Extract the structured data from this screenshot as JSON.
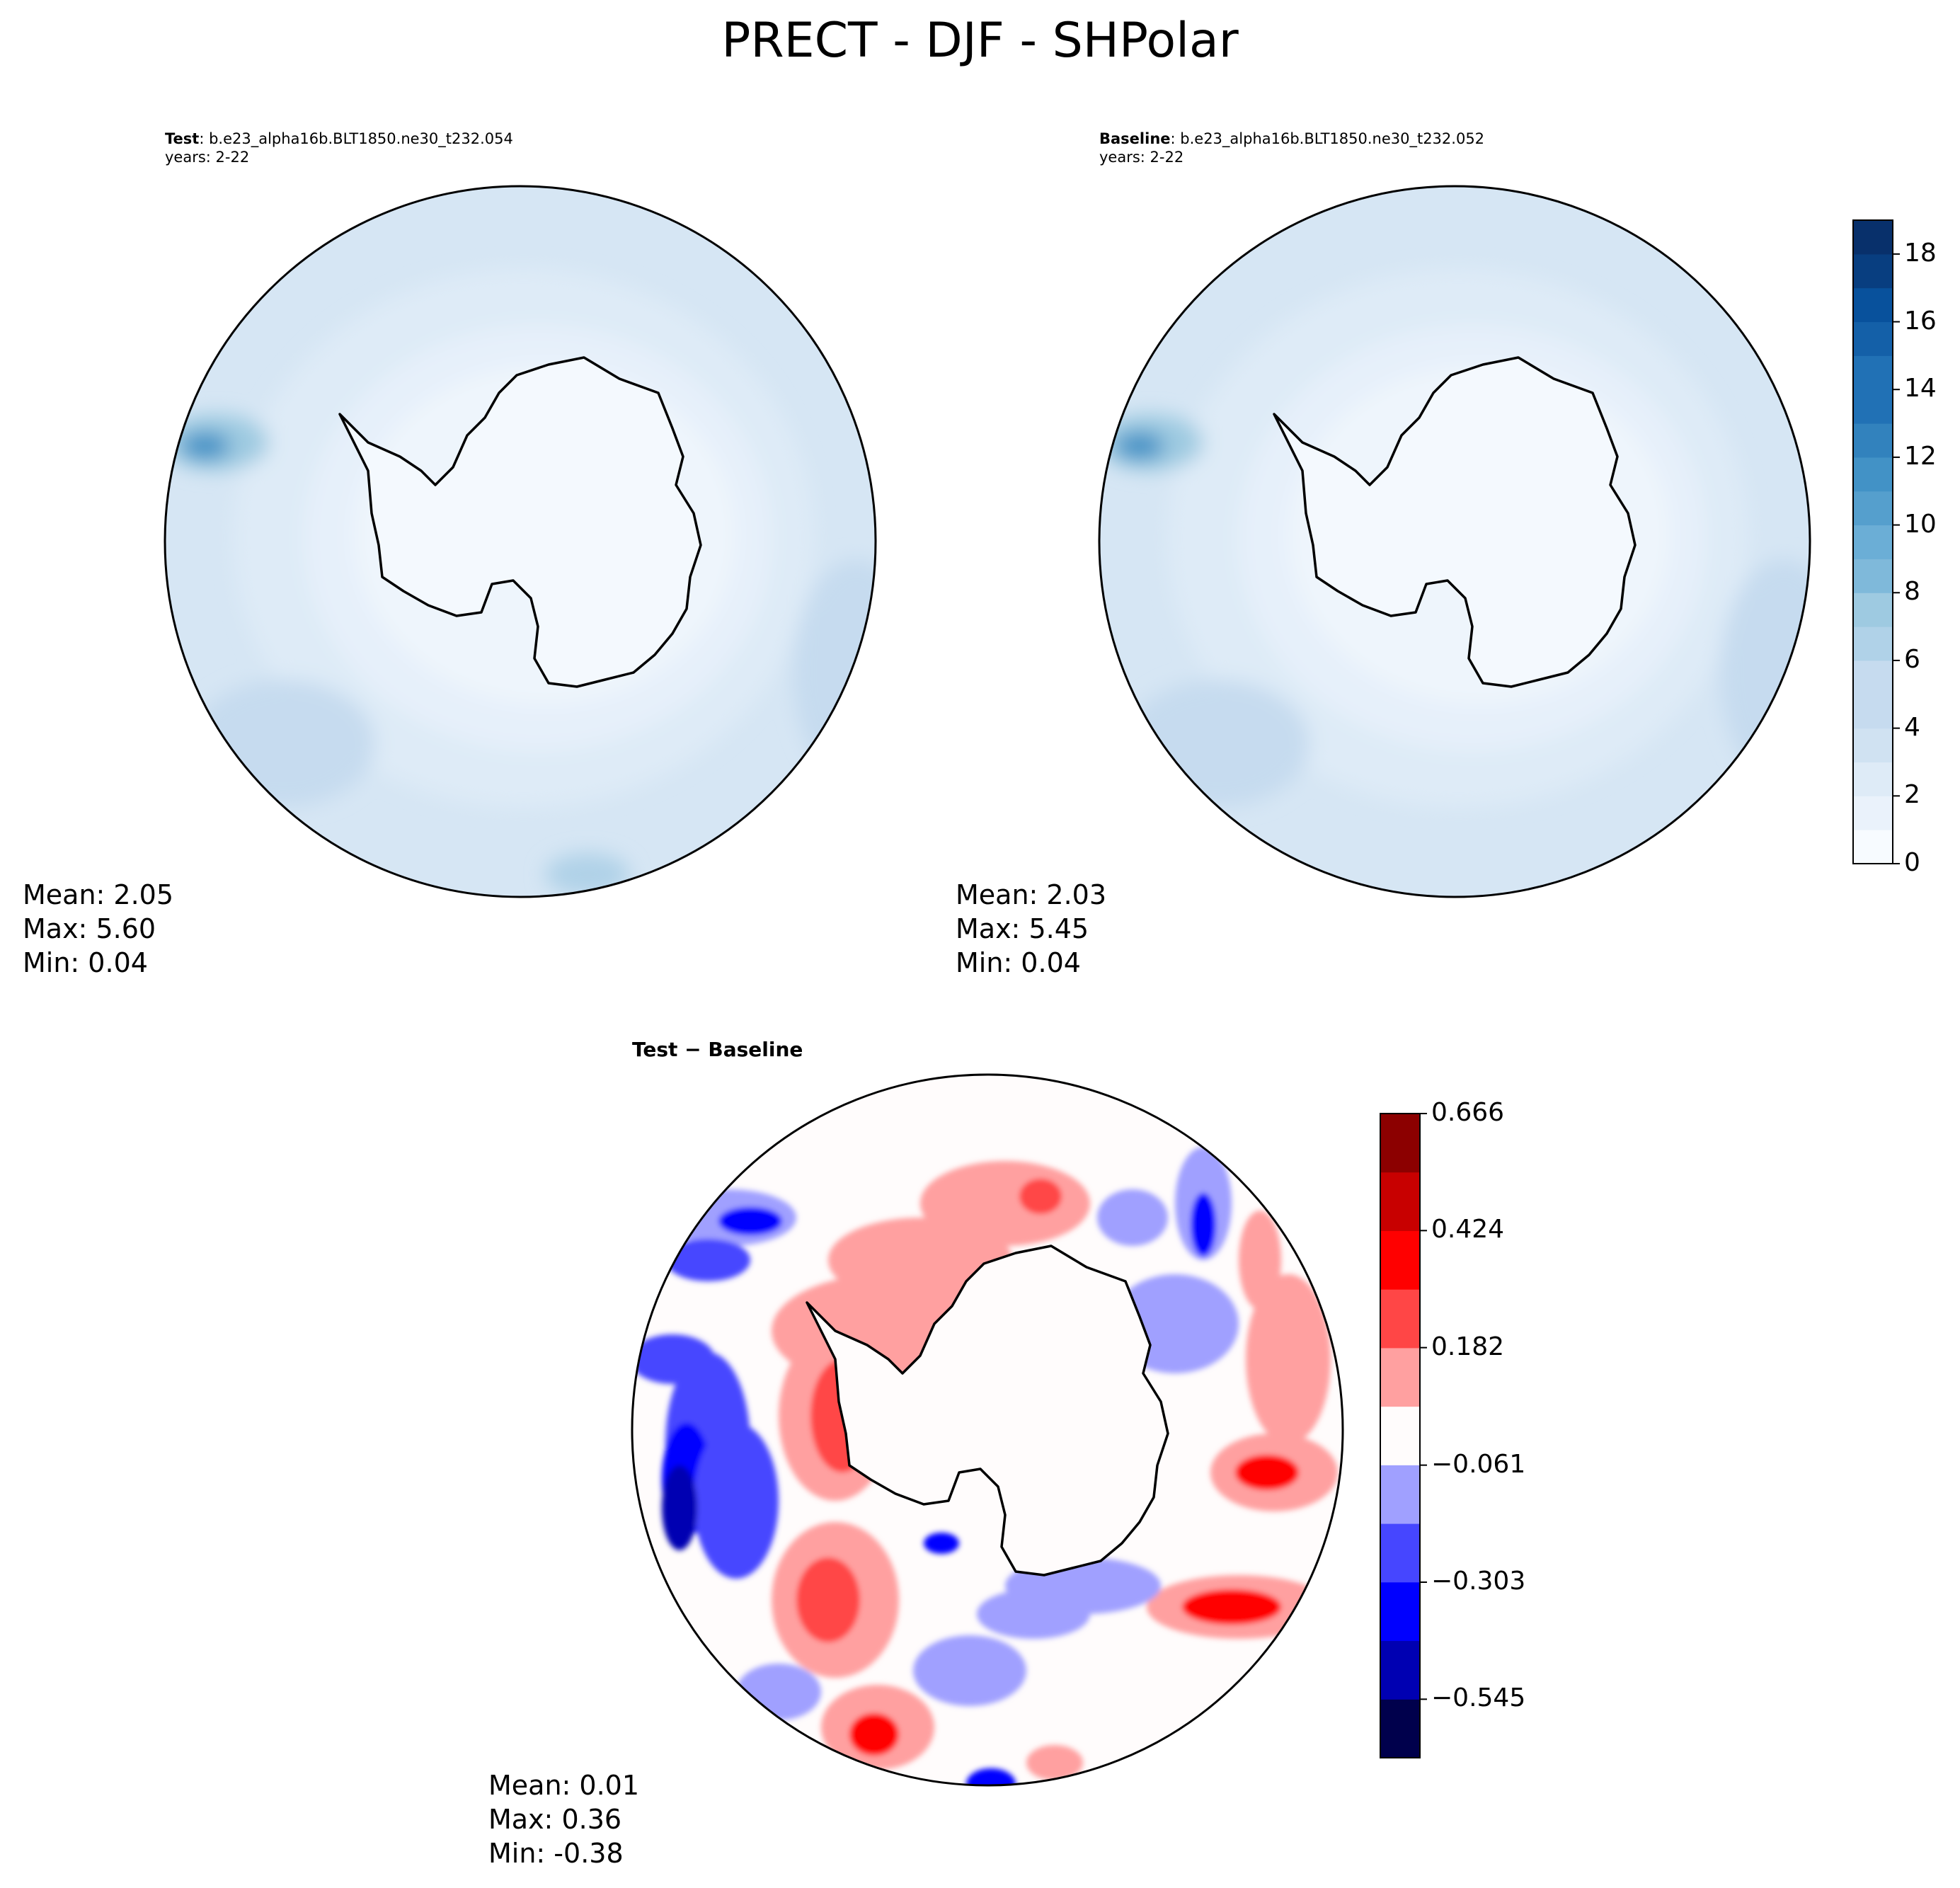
{
  "figure": {
    "title": "PRECT - DJF - SHPolar"
  },
  "colors": {
    "blues": [
      "#f7fbff",
      "#eaf2fb",
      "#deebf7",
      "#d0e2f2",
      "#c6dbef",
      "#b0d2e8",
      "#9ecae1",
      "#7fb9da",
      "#6baed6",
      "#559fcd",
      "#4292c6",
      "#3282bd",
      "#2171b5",
      "#1460a8",
      "#08519c",
      "#083e80",
      "#08306b"
    ],
    "diverging": [
      "#00004c",
      "#0000b2",
      "#0000ff",
      "#4646ff",
      "#a0a0ff",
      "#fffcfc",
      "#ffa0a0",
      "#ff4646",
      "#ff0000",
      "#c80000",
      "#8c0000"
    ],
    "coastline": "#000000"
  },
  "panels": {
    "test": {
      "label": "Test",
      "case": ": b.e23_alpha16b.BLT1850.ne30_t232.054",
      "years": "years: 2-22",
      "mean": "Mean:  2.05",
      "max": "Max:  5.60",
      "min": "Min:  0.04"
    },
    "baseline": {
      "label": "Baseline",
      "case": ": b.e23_alpha16b.BLT1850.ne30_t232.052",
      "years": "years: 2-22",
      "mean": "Mean:  2.03",
      "max": "Max:  5.45",
      "min": "Min:  0.04"
    },
    "diff": {
      "label": "Test − Baseline",
      "mean": "Mean:  0.01",
      "max": "Max:  0.36",
      "min": "Min: -0.38"
    }
  },
  "chart_data": [
    {
      "type": "heatmap",
      "name": "Test",
      "projection": "south-polar-stereographic",
      "variable": "PRECT",
      "season": "DJF",
      "region": "SHPolar",
      "mean": 2.05,
      "max": 5.6,
      "min": 0.04,
      "colorbar": {
        "range": [
          0,
          19
        ],
        "boundaries": [
          0,
          1,
          2,
          3,
          4,
          5,
          6,
          7,
          8,
          9,
          10,
          11,
          12,
          13,
          14,
          15,
          16,
          17,
          18,
          19
        ],
        "tick_labels": [
          "0",
          "2",
          "4",
          "6",
          "8",
          "10",
          "12",
          "14",
          "16",
          "18"
        ]
      }
    },
    {
      "type": "heatmap",
      "name": "Baseline",
      "projection": "south-polar-stereographic",
      "mean": 2.03,
      "max": 5.45,
      "min": 0.04,
      "colorbar": {
        "range": [
          0,
          19
        ],
        "boundaries": [
          0,
          1,
          2,
          3,
          4,
          5,
          6,
          7,
          8,
          9,
          10,
          11,
          12,
          13,
          14,
          15,
          16,
          17,
          18,
          19
        ],
        "tick_labels": [
          "0",
          "2",
          "4",
          "6",
          "8",
          "10",
          "12",
          "14",
          "16",
          "18"
        ]
      }
    },
    {
      "type": "heatmap",
      "name": "Test − Baseline",
      "projection": "south-polar-stereographic",
      "mean": 0.01,
      "max": 0.36,
      "min": -0.38,
      "colorbar": {
        "range": [
          -0.666,
          0.666
        ],
        "levels": 11,
        "tick_labels": [
          "−0.545",
          "−0.303",
          "−0.061",
          "0.182",
          "0.424",
          "0.666"
        ]
      }
    }
  ]
}
